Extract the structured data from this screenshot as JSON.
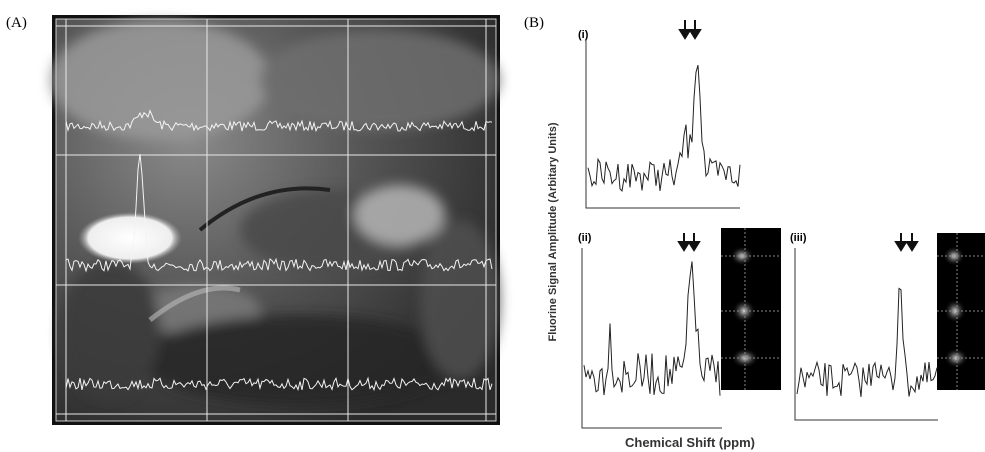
{
  "panel_a": {
    "label": "(A)"
  },
  "panel_b": {
    "label": "(B)",
    "y_axis_label": "Fluorine Signal Amplitude (Arbitary Units)",
    "x_axis_label": "Chemical Shift (ppm)",
    "spectra": [
      {
        "label": "(i)"
      },
      {
        "label": "(ii)"
      },
      {
        "label": "(iii)"
      }
    ]
  }
}
